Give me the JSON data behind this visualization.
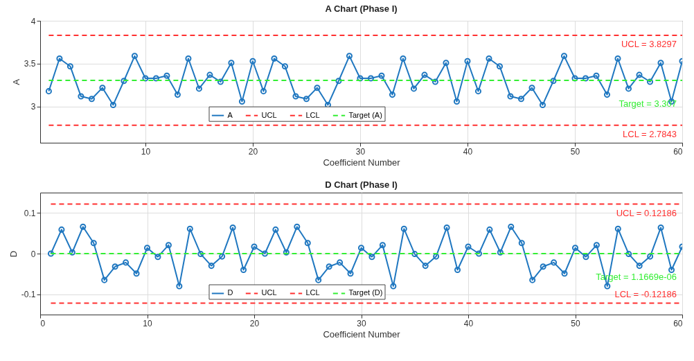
{
  "chart_data": [
    {
      "type": "line",
      "title": "A Chart (Phase I)",
      "xlabel": "Coefficient Number",
      "ylabel": "A",
      "x": [
        1,
        2,
        3,
        4,
        5,
        6,
        7,
        8,
        9,
        10,
        11,
        12,
        13,
        14,
        15,
        16,
        17,
        18,
        19,
        20,
        21,
        22,
        23,
        24,
        25,
        26,
        27,
        28,
        29,
        30,
        31,
        32,
        33,
        34,
        35,
        36,
        37,
        38,
        39,
        40,
        41,
        42,
        43,
        44,
        45,
        46,
        47,
        48,
        49,
        50,
        51,
        52,
        53,
        54,
        55,
        56,
        57,
        58,
        59,
        60
      ],
      "series": [
        {
          "name": "A",
          "color": "#1f77c0",
          "marker": "circle",
          "line_style": "solid",
          "values": [
            3.18,
            3.56,
            3.47,
            3.12,
            3.09,
            3.22,
            3.02,
            3.3,
            3.59,
            3.33,
            3.33,
            3.36,
            3.14,
            3.56,
            3.21,
            3.37,
            3.29,
            3.51,
            3.06,
            3.53,
            3.18,
            3.56,
            3.47,
            3.12,
            3.09,
            3.22,
            3.02,
            3.3,
            3.59,
            3.33,
            3.33,
            3.36,
            3.14,
            3.56,
            3.21,
            3.37,
            3.29,
            3.51,
            3.06,
            3.53,
            3.18,
            3.56,
            3.47,
            3.12,
            3.09,
            3.22,
            3.02,
            3.3,
            3.59,
            3.33,
            3.33,
            3.36,
            3.14,
            3.56,
            3.21,
            3.37,
            3.29,
            3.51,
            3.06,
            3.53
          ]
        },
        {
          "name": "UCL",
          "color": "#ff3030",
          "marker": "none",
          "line_style": "dashed",
          "values": [
            3.8297,
            3.8297,
            3.8297,
            3.8297,
            3.8297,
            3.8297,
            3.8297,
            3.8297,
            3.8297,
            3.8297,
            3.8297,
            3.8297,
            3.8297,
            3.8297,
            3.8297,
            3.8297,
            3.8297,
            3.8297,
            3.8297,
            3.8297,
            3.8297,
            3.8297,
            3.8297,
            3.8297,
            3.8297,
            3.8297,
            3.8297,
            3.8297,
            3.8297,
            3.8297,
            3.8297,
            3.8297,
            3.8297,
            3.8297,
            3.8297,
            3.8297,
            3.8297,
            3.8297,
            3.8297,
            3.8297,
            3.8297,
            3.8297,
            3.8297,
            3.8297,
            3.8297,
            3.8297,
            3.8297,
            3.8297,
            3.8297,
            3.8297,
            3.8297,
            3.8297,
            3.8297,
            3.8297,
            3.8297,
            3.8297,
            3.8297,
            3.8297,
            3.8297,
            3.8297
          ]
        },
        {
          "name": "LCL",
          "color": "#ff3030",
          "marker": "none",
          "line_style": "dashed",
          "values": [
            2.7843,
            2.7843,
            2.7843,
            2.7843,
            2.7843,
            2.7843,
            2.7843,
            2.7843,
            2.7843,
            2.7843,
            2.7843,
            2.7843,
            2.7843,
            2.7843,
            2.7843,
            2.7843,
            2.7843,
            2.7843,
            2.7843,
            2.7843,
            2.7843,
            2.7843,
            2.7843,
            2.7843,
            2.7843,
            2.7843,
            2.7843,
            2.7843,
            2.7843,
            2.7843,
            2.7843,
            2.7843,
            2.7843,
            2.7843,
            2.7843,
            2.7843,
            2.7843,
            2.7843,
            2.7843,
            2.7843,
            2.7843,
            2.7843,
            2.7843,
            2.7843,
            2.7843,
            2.7843,
            2.7843,
            2.7843,
            2.7843,
            2.7843,
            2.7843,
            2.7843,
            2.7843,
            2.7843,
            2.7843,
            2.7843,
            2.7843,
            2.7843,
            2.7843,
            2.7843
          ]
        },
        {
          "name": "Target (A)",
          "color": "#33ee33",
          "marker": "none",
          "line_style": "dashed",
          "values": [
            3.307,
            3.307,
            3.307,
            3.307,
            3.307,
            3.307,
            3.307,
            3.307,
            3.307,
            3.307,
            3.307,
            3.307,
            3.307,
            3.307,
            3.307,
            3.307,
            3.307,
            3.307,
            3.307,
            3.307,
            3.307,
            3.307,
            3.307,
            3.307,
            3.307,
            3.307,
            3.307,
            3.307,
            3.307,
            3.307,
            3.307,
            3.307,
            3.307,
            3.307,
            3.307,
            3.307,
            3.307,
            3.307,
            3.307,
            3.307,
            3.307,
            3.307,
            3.307,
            3.307,
            3.307,
            3.307,
            3.307,
            3.307,
            3.307,
            3.307,
            3.307,
            3.307,
            3.307,
            3.307,
            3.307,
            3.307,
            3.307,
            3.307,
            3.307,
            3.307
          ]
        }
      ],
      "xlim": [
        0.2,
        60
      ],
      "xticks": [
        10,
        20,
        30,
        40,
        50,
        60
      ],
      "ylim": [
        2.58,
        4
      ],
      "yticks": [
        3,
        3.5,
        4
      ],
      "grid": true,
      "legend": "bottom",
      "annotations": [
        "UCL = 3.8297",
        "Target = 3.307",
        "LCL = 2.7843"
      ]
    },
    {
      "type": "line",
      "title": "D Chart (Phase I)",
      "xlabel": "Coefficient Number",
      "ylabel": "D",
      "x": [
        1,
        2,
        3,
        4,
        5,
        6,
        7,
        8,
        9,
        10,
        11,
        12,
        13,
        14,
        15,
        16,
        17,
        18,
        19,
        20,
        21,
        22,
        23,
        24,
        25,
        26,
        27,
        28,
        29,
        30,
        31,
        32,
        33,
        34,
        35,
        36,
        37,
        38,
        39,
        40,
        41,
        42,
        43,
        44,
        45,
        46,
        47,
        48,
        49,
        50,
        51,
        52,
        53,
        54,
        55,
        56,
        57,
        58,
        59,
        60
      ],
      "series": [
        {
          "name": "D",
          "color": "#1f77c0",
          "marker": "circle",
          "line_style": "solid",
          "values": [
            0,
            0.059,
            0.003,
            0.066,
            0.026,
            -0.065,
            -0.032,
            -0.022,
            -0.049,
            0.014,
            -0.008,
            0.021,
            -0.08,
            0.061,
            -0.001,
            -0.03,
            -0.007,
            0.064,
            -0.04,
            0.017,
            0,
            0.059,
            0.003,
            0.066,
            0.026,
            -0.065,
            -0.032,
            -0.022,
            -0.049,
            0.014,
            -0.008,
            0.021,
            -0.08,
            0.061,
            -0.001,
            -0.03,
            -0.007,
            0.064,
            -0.04,
            0.017,
            0,
            0.059,
            0.003,
            0.066,
            0.026,
            -0.065,
            -0.032,
            -0.022,
            -0.049,
            0.014,
            -0.008,
            0.021,
            -0.08,
            0.061,
            -0.001,
            -0.03,
            -0.007,
            0.064,
            -0.04,
            0.017
          ]
        },
        {
          "name": "UCL",
          "color": "#ff3030",
          "marker": "none",
          "line_style": "dashed",
          "values": [
            0.12186,
            0.12186,
            0.12186,
            0.12186,
            0.12186,
            0.12186,
            0.12186,
            0.12186,
            0.12186,
            0.12186,
            0.12186,
            0.12186,
            0.12186,
            0.12186,
            0.12186,
            0.12186,
            0.12186,
            0.12186,
            0.12186,
            0.12186,
            0.12186,
            0.12186,
            0.12186,
            0.12186,
            0.12186,
            0.12186,
            0.12186,
            0.12186,
            0.12186,
            0.12186,
            0.12186,
            0.12186,
            0.12186,
            0.12186,
            0.12186,
            0.12186,
            0.12186,
            0.12186,
            0.12186,
            0.12186,
            0.12186,
            0.12186,
            0.12186,
            0.12186,
            0.12186,
            0.12186,
            0.12186,
            0.12186,
            0.12186,
            0.12186,
            0.12186,
            0.12186,
            0.12186,
            0.12186,
            0.12186,
            0.12186,
            0.12186,
            0.12186,
            0.12186,
            0.12186
          ]
        },
        {
          "name": "LCL",
          "color": "#ff3030",
          "marker": "none",
          "line_style": "dashed",
          "values": [
            -0.12186,
            -0.12186,
            -0.12186,
            -0.12186,
            -0.12186,
            -0.12186,
            -0.12186,
            -0.12186,
            -0.12186,
            -0.12186,
            -0.12186,
            -0.12186,
            -0.12186,
            -0.12186,
            -0.12186,
            -0.12186,
            -0.12186,
            -0.12186,
            -0.12186,
            -0.12186,
            -0.12186,
            -0.12186,
            -0.12186,
            -0.12186,
            -0.12186,
            -0.12186,
            -0.12186,
            -0.12186,
            -0.12186,
            -0.12186,
            -0.12186,
            -0.12186,
            -0.12186,
            -0.12186,
            -0.12186,
            -0.12186,
            -0.12186,
            -0.12186,
            -0.12186,
            -0.12186,
            -0.12186,
            -0.12186,
            -0.12186,
            -0.12186,
            -0.12186,
            -0.12186,
            -0.12186,
            -0.12186,
            -0.12186,
            -0.12186,
            -0.12186,
            -0.12186,
            -0.12186,
            -0.12186,
            -0.12186,
            -0.12186,
            -0.12186,
            -0.12186,
            -0.12186,
            -0.12186
          ]
        },
        {
          "name": "Target (D)",
          "color": "#33ee33",
          "marker": "none",
          "line_style": "dashed",
          "values": [
            1.1669e-06,
            1.1669e-06,
            1.1669e-06,
            1.1669e-06,
            1.1669e-06,
            1.1669e-06,
            1.1669e-06,
            1.1669e-06,
            1.1669e-06,
            1.1669e-06,
            1.1669e-06,
            1.1669e-06,
            1.1669e-06,
            1.1669e-06,
            1.1669e-06,
            1.1669e-06,
            1.1669e-06,
            1.1669e-06,
            1.1669e-06,
            1.1669e-06,
            1.1669e-06,
            1.1669e-06,
            1.1669e-06,
            1.1669e-06,
            1.1669e-06,
            1.1669e-06,
            1.1669e-06,
            1.1669e-06,
            1.1669e-06,
            1.1669e-06,
            1.1669e-06,
            1.1669e-06,
            1.1669e-06,
            1.1669e-06,
            1.1669e-06,
            1.1669e-06,
            1.1669e-06,
            1.1669e-06,
            1.1669e-06,
            1.1669e-06,
            1.1669e-06,
            1.1669e-06,
            1.1669e-06,
            1.1669e-06,
            1.1669e-06,
            1.1669e-06,
            1.1669e-06,
            1.1669e-06,
            1.1669e-06,
            1.1669e-06,
            1.1669e-06,
            1.1669e-06,
            1.1669e-06,
            1.1669e-06,
            1.1669e-06,
            1.1669e-06,
            1.1669e-06,
            1.1669e-06,
            1.1669e-06,
            1.1669e-06
          ]
        }
      ],
      "xlim": [
        0,
        60
      ],
      "xticks": [
        0,
        10,
        20,
        30,
        40,
        50,
        60
      ],
      "ylim": [
        -0.15,
        0.15
      ],
      "yticks": [
        -0.1,
        0,
        0.1
      ],
      "grid": true,
      "legend": "bottom",
      "annotations": [
        "UCL = 0.12186",
        "Target = 1.1669e-06",
        "LCL = -0.12186"
      ]
    }
  ]
}
